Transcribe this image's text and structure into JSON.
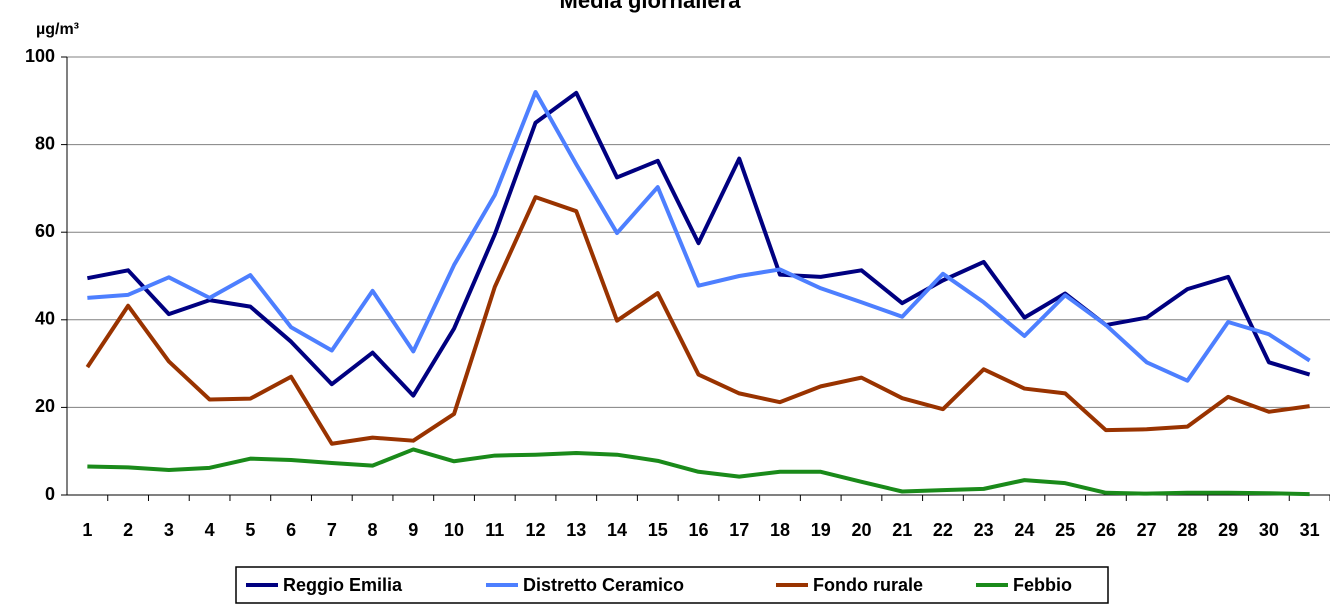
{
  "chart_data": {
    "type": "line",
    "title": "Media giornaliera",
    "y_label": "µg/m³",
    "categories": [
      "1",
      "2",
      "3",
      "4",
      "5",
      "6",
      "7",
      "8",
      "9",
      "10",
      "11",
      "12",
      "13",
      "14",
      "15",
      "16",
      "17",
      "18",
      "19",
      "20",
      "21",
      "22",
      "23",
      "24",
      "25",
      "26",
      "27",
      "28",
      "29",
      "30",
      "31"
    ],
    "series": [
      {
        "name": "Reggio Emilia",
        "color": "#000080",
        "values": [
          49.5,
          51.3,
          41.3,
          44.5,
          43,
          35,
          25.3,
          32.5,
          22.7,
          38,
          59.5,
          85,
          91.8,
          72.5,
          76.3,
          57.5,
          76.8,
          50.3,
          49.8,
          51.3,
          43.8,
          49,
          53.2,
          40.5,
          46,
          38.8,
          40.5,
          47,
          49.8,
          30.3,
          27.5
        ]
      },
      {
        "name": "Distretto Ceramico",
        "color": "#4d7fff",
        "values": [
          45,
          45.7,
          49.7,
          45,
          50.2,
          38.3,
          33,
          46.6,
          32.8,
          52.5,
          68.5,
          92,
          75.5,
          59.8,
          70.3,
          47.8,
          50,
          51.5,
          47.2,
          44,
          40.7,
          50.5,
          44,
          36.3,
          45.6,
          38.8,
          30.3,
          26.1,
          39.5,
          36.7,
          30.7
        ]
      },
      {
        "name": "Fondo rurale",
        "color": "#993300",
        "values": [
          29.2,
          43.2,
          30.5,
          21.8,
          22,
          27,
          11.7,
          13.1,
          12.4,
          18.5,
          47.5,
          68,
          64.8,
          39.8,
          46.1,
          27.5,
          23.2,
          21.2,
          24.8,
          26.8,
          22.1,
          19.6,
          28.7,
          24.3,
          23.2,
          14.8,
          15,
          15.6,
          22.4,
          19,
          20.3
        ]
      },
      {
        "name": "Febbio",
        "color": "#1a8a1a",
        "values": [
          6.5,
          6.3,
          5.7,
          6.2,
          8.3,
          8,
          7.3,
          6.7,
          10.4,
          7.7,
          9,
          9.2,
          9.6,
          9.2,
          7.8,
          5.3,
          4.2,
          5.3,
          5.3,
          3,
          0.8,
          1.1,
          1.4,
          3.4,
          2.7,
          0.5,
          0.3,
          0.5,
          0.5,
          0.4,
          0.2
        ]
      }
    ],
    "ylim": [
      0,
      100
    ],
    "yticks": [
      0,
      20,
      40,
      60,
      80,
      100
    ],
    "grid": true,
    "legend": "bottom"
  }
}
